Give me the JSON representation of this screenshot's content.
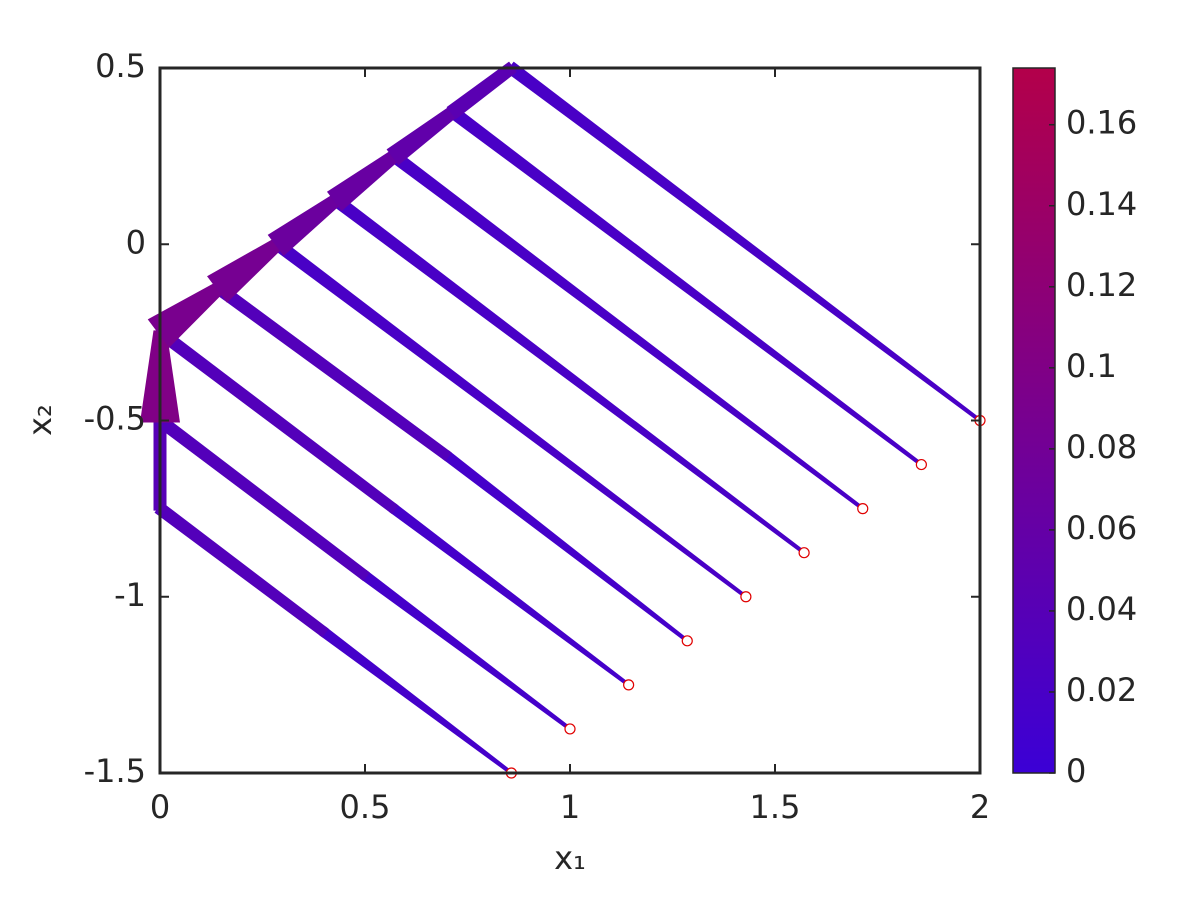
{
  "chart_data": {
    "type": "trajectory",
    "xlabel": "x₁",
    "ylabel": "x₂",
    "xlim": [
      0,
      2
    ],
    "ylim": [
      -1.5,
      0.5
    ],
    "xticks": [
      0,
      0.5,
      1,
      1.5,
      2
    ],
    "yticks": [
      -1.5,
      -1,
      -0.5,
      0,
      0.5
    ],
    "colormap": [
      "#3b00d6",
      "#b3004a"
    ],
    "marker_color": "#e00000",
    "colorbar": {
      "clim": [
        0,
        0.174
      ],
      "ticks": [
        0,
        0.02,
        0.04,
        0.06,
        0.08,
        0.1,
        0.12,
        0.14,
        0.16
      ]
    },
    "series": [
      {
        "x": [
          0.857,
          0.4,
          0,
          0
        ],
        "y": [
          -1.5,
          -1.1,
          -0.75,
          -0.5
        ],
        "values": [
          0,
          0.03,
          0.04,
          0.04
        ]
      },
      {
        "x": [
          1.0,
          0.5,
          0
        ],
        "y": [
          -1.375,
          -0.94,
          -0.5
        ],
        "values": [
          0,
          0.03,
          0.04
        ]
      },
      {
        "x": [
          1.143,
          0.57,
          0,
          0
        ],
        "y": [
          -1.25,
          -0.75,
          -0.25,
          -0.5
        ],
        "values": [
          0,
          0.03,
          0.04,
          0.16
        ]
      },
      {
        "x": [
          1.286,
          0.7,
          0.143,
          0
        ],
        "y": [
          -1.125,
          -0.6,
          -0.125,
          -0.25
        ],
        "values": [
          0,
          0.03,
          0.04,
          0.14
        ]
      },
      {
        "x": [
          1.429,
          0.286,
          0.143
        ],
        "y": [
          -1.0,
          0,
          -0.125
        ],
        "values": [
          0,
          0.04,
          0.13
        ]
      },
      {
        "x": [
          1.571,
          0.429,
          0.286
        ],
        "y": [
          -0.875,
          0.125,
          0
        ],
        "values": [
          0,
          0.04,
          0.1
        ]
      },
      {
        "x": [
          1.714,
          0.571,
          0.429
        ],
        "y": [
          -0.75,
          0.25,
          0.125
        ],
        "values": [
          0,
          0.04,
          0.09
        ]
      },
      {
        "x": [
          1.857,
          0.714,
          0.571
        ],
        "y": [
          -0.625,
          0.375,
          0.25
        ],
        "values": [
          0,
          0.04,
          0.07
        ]
      },
      {
        "x": [
          2.0,
          0.857,
          0.714
        ],
        "y": [
          -0.5,
          0.5,
          0.375
        ],
        "values": [
          0,
          0.04,
          0.05
        ]
      }
    ]
  }
}
